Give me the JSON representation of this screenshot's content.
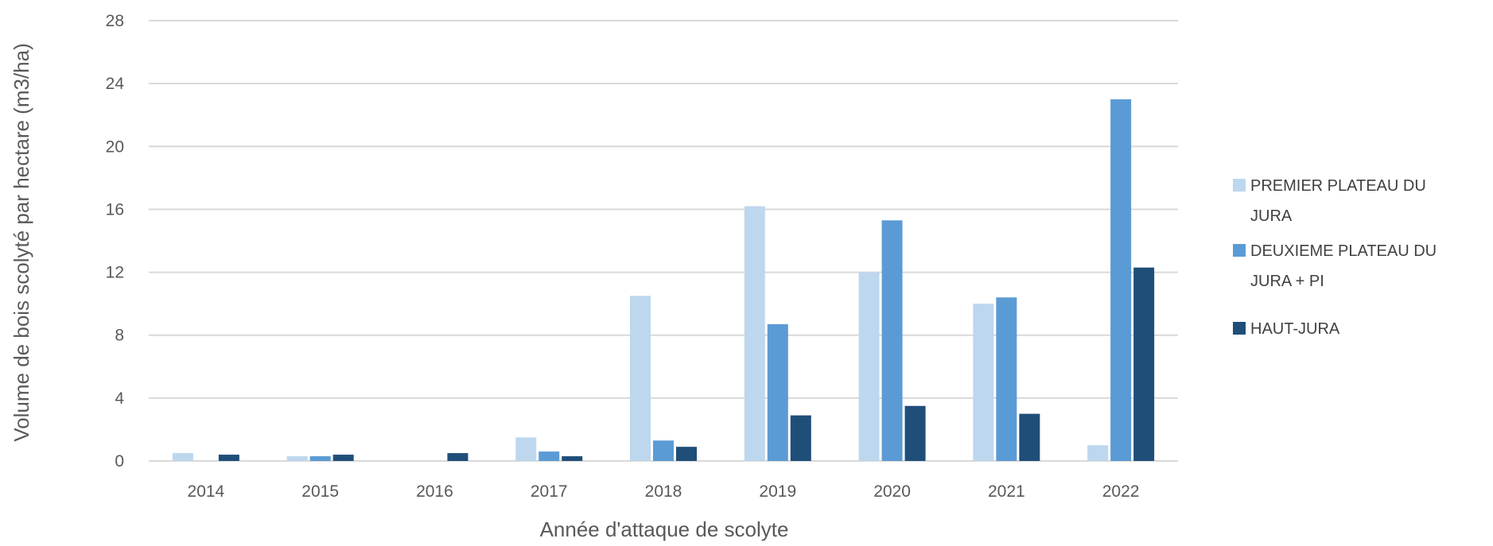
{
  "chart_data": {
    "type": "bar",
    "title": "",
    "xlabel": "Année d'attaque de scolyte",
    "ylabel": "Volume de bois scolyté par hectare (m3/ha)",
    "ylim": [
      0,
      28
    ],
    "yticks": [
      0,
      4,
      8,
      12,
      16,
      20,
      24,
      28
    ],
    "grid": true,
    "legend_position": "right",
    "categories": [
      "2014",
      "2015",
      "2016",
      "2017",
      "2018",
      "2019",
      "2020",
      "2021",
      "2022"
    ],
    "series": [
      {
        "name": "PREMIER PLATEAU DU JURA",
        "legend_lines": [
          "PREMIER PLATEAU DU",
          "JURA"
        ],
        "color": "#bdd7ee",
        "values": [
          0.5,
          0.3,
          0.0,
          1.5,
          10.5,
          16.2,
          12.0,
          10.0,
          1.0
        ]
      },
      {
        "name": "DEUXIEME PLATEAU DU JURA + PI",
        "legend_lines": [
          "DEUXIEME PLATEAU DU",
          "JURA + PI"
        ],
        "color": "#5b9bd5",
        "values": [
          0.0,
          0.3,
          0.0,
          0.6,
          1.3,
          8.7,
          15.3,
          10.4,
          23.0
        ]
      },
      {
        "name": "HAUT-JURA",
        "legend_lines": [
          "HAUT-JURA"
        ],
        "color": "#1f4e79",
        "values": [
          0.4,
          0.4,
          0.5,
          0.3,
          0.9,
          2.9,
          3.5,
          3.0,
          12.3
        ]
      }
    ]
  }
}
